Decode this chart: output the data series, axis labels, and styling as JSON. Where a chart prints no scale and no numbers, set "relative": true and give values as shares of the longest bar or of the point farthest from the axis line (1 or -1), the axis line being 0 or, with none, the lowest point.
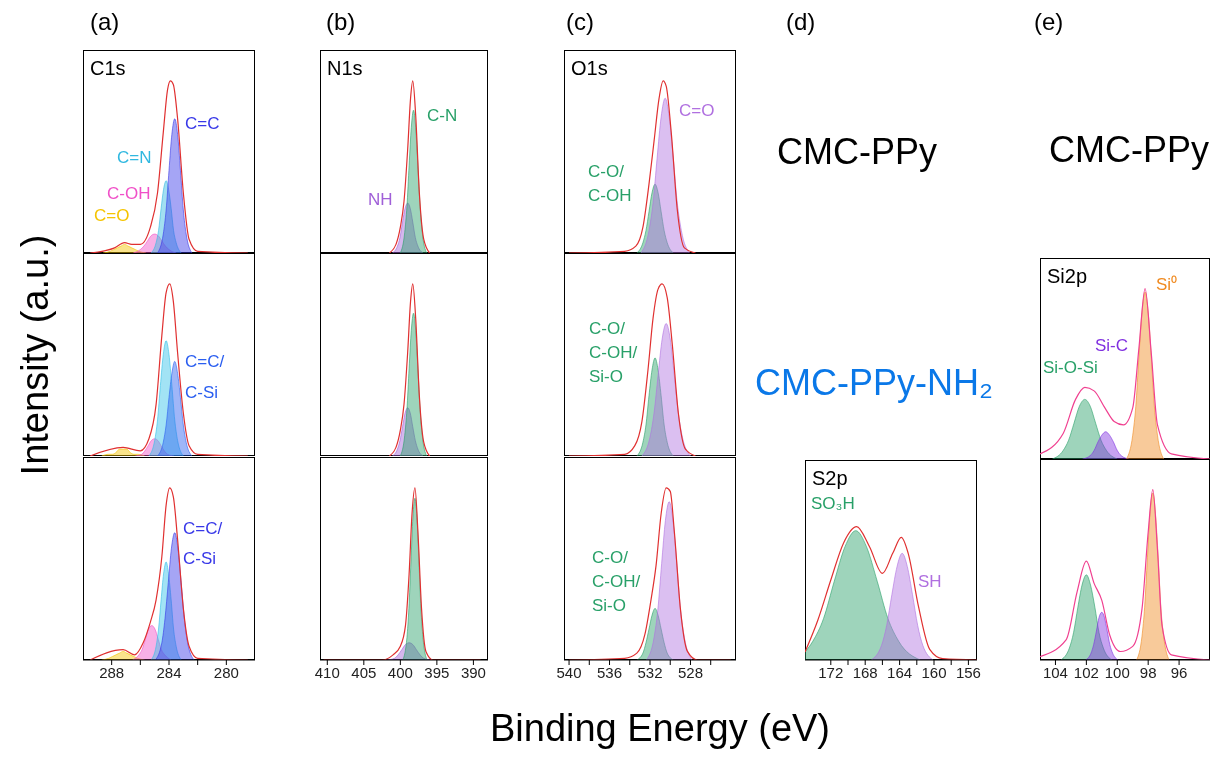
{
  "chart_data": [
    {
      "type": "area",
      "relative": true,
      "title": "(a)",
      "subtitle": "C1s",
      "xlim": [
        290,
        278
      ],
      "tick_labels": false,
      "series": [
        {
          "name": "C=O",
          "color": "#f5c400",
          "x": [
            285.6,
            286.1,
            286.35,
            286.6,
            286.85,
            287.1,
            287.35,
            287.6,
            287.85,
            288.1,
            288.6
          ],
          "values": [
            0,
            0.01,
            0.02,
            0.03,
            0.04,
            0.05,
            0.04,
            0.03,
            0.02,
            0.01,
            0
          ]
        },
        {
          "name": "C-OH",
          "color": "#f050c8",
          "x": [
            283.5,
            284,
            284.25,
            284.5,
            284.75,
            285,
            285.25,
            285.5,
            285.75,
            286,
            286.5
          ],
          "values": [
            0,
            0.02,
            0.04,
            0.07,
            0.1,
            0.11,
            0.1,
            0.07,
            0.04,
            0.02,
            0
          ]
        },
        {
          "name": "C=N",
          "color": "#30b8e0",
          "x": [
            283.15,
            283.5,
            283.68,
            283.85,
            284.03,
            284.2,
            284.38,
            284.55,
            284.73,
            284.9,
            285.25
          ],
          "values": [
            0,
            0.06,
            0.13,
            0.26,
            0.37,
            0.42,
            0.37,
            0.26,
            0.13,
            0.06,
            0
          ]
        },
        {
          "name": "C=C",
          "color": "#3838e8",
          "x": [
            282.4,
            282.8,
            283,
            283.2,
            283.4,
            283.6,
            283.8,
            284,
            284.2,
            284.4,
            284.8
          ],
          "values": [
            0,
            0.11,
            0.25,
            0.48,
            0.69,
            0.78,
            0.69,
            0.48,
            0.25,
            0.11,
            0
          ]
        },
        {
          "type": "line",
          "color": "#e03030",
          "x": [
            278.5,
            282,
            282.6,
            283,
            283.4,
            283.7,
            283.9,
            284.1,
            284.4,
            284.8,
            285.3,
            286,
            286.6,
            287.1,
            287.8,
            289.5
          ],
          "values": [
            0,
            0.01,
            0.08,
            0.35,
            0.78,
            0.98,
            1,
            0.95,
            0.7,
            0.35,
            0.15,
            0.05,
            0.05,
            0.06,
            0.03,
            0
          ]
        }
      ]
    },
    {
      "type": "area",
      "relative": true,
      "ylabel": "Intensity (a.u.)",
      "xlim": [
        290,
        278
      ],
      "tick_labels": false,
      "series": [
        {
          "color": "#f5c400",
          "x": [
            285.7,
            286.2,
            286.45,
            286.7,
            286.95,
            287.2,
            287.45,
            287.7,
            287.95,
            288.2,
            288.7
          ],
          "values": [
            0,
            0.01,
            0.01,
            0.02,
            0.04,
            0.04,
            0.04,
            0.02,
            0.01,
            0.01,
            0
          ]
        },
        {
          "color": "#f050c8",
          "x": [
            283.65,
            284.1,
            284.33,
            284.55,
            284.78,
            285,
            285.23,
            285.45,
            285.68,
            285.9,
            286.35
          ],
          "values": [
            0,
            0.01,
            0.03,
            0.06,
            0.09,
            0.1,
            0.09,
            0.06,
            0.03,
            0.01,
            0
          ]
        },
        {
          "color": "#30c0e8",
          "x": [
            283,
            283.4,
            283.6,
            283.8,
            284,
            284.2,
            284.4,
            284.6,
            284.8,
            285,
            285.4
          ],
          "values": [
            0,
            0.09,
            0.21,
            0.41,
            0.59,
            0.67,
            0.59,
            0.41,
            0.21,
            0.09,
            0
          ]
        },
        {
          "name": "C=C/C-Si",
          "color": "#2a5ef0",
          "x": [
            282.4,
            282.8,
            283,
            283.2,
            283.4,
            283.6,
            283.8,
            284,
            284.2,
            284.4,
            284.8
          ],
          "values": [
            0,
            0.08,
            0.18,
            0.34,
            0.48,
            0.55,
            0.48,
            0.34,
            0.18,
            0.08,
            0
          ]
        },
        {
          "type": "line",
          "color": "#e03030",
          "x": [
            278.5,
            282,
            282.6,
            283,
            283.4,
            283.7,
            283.95,
            284.2,
            284.5,
            284.9,
            285.4,
            286,
            287.2,
            289.5
          ],
          "values": [
            0,
            0.01,
            0.06,
            0.25,
            0.6,
            0.9,
            1,
            0.95,
            0.7,
            0.3,
            0.1,
            0.03,
            0.05,
            0
          ]
        }
      ]
    },
    {
      "type": "area",
      "relative": true,
      "xlim": [
        290,
        278
      ],
      "xticks": [
        288,
        {
          "value": 286,
          "label": null
        },
        284,
        {
          "value": 282,
          "label": null
        },
        280
      ],
      "tick_labels": "x",
      "series": [
        {
          "color": "#f5c400",
          "x": [
            285.7,
            286.2,
            286.45,
            286.7,
            286.95,
            287.2,
            287.45,
            287.7,
            287.95,
            288.2,
            288.7
          ],
          "values": [
            0,
            0.01,
            0.02,
            0.03,
            0.04,
            0.05,
            0.04,
            0.03,
            0.02,
            0.01,
            0
          ]
        },
        {
          "color": "#f050c8",
          "x": [
            283.85,
            284.3,
            284.53,
            284.75,
            284.98,
            285.2,
            285.43,
            285.65,
            285.88,
            286.1,
            286.55
          ],
          "values": [
            0,
            0.03,
            0.06,
            0.12,
            0.18,
            0.2,
            0.18,
            0.12,
            0.06,
            0.03,
            0
          ]
        },
        {
          "color": "#30c0e8",
          "x": [
            283.15,
            283.5,
            283.68,
            283.85,
            284.03,
            284.2,
            284.38,
            284.55,
            284.73,
            284.9,
            285.25
          ],
          "values": [
            0,
            0.08,
            0.18,
            0.35,
            0.5,
            0.57,
            0.5,
            0.35,
            0.18,
            0.08,
            0
          ]
        },
        {
          "name": "C=C/C-Si",
          "color": "#3838e8",
          "x": [
            282.25,
            282.7,
            282.93,
            283.15,
            283.38,
            283.6,
            283.83,
            284.05,
            284.28,
            284.5,
            284.95
          ],
          "values": [
            0,
            0.1,
            0.24,
            0.45,
            0.65,
            0.74,
            0.65,
            0.45,
            0.24,
            0.1,
            0
          ]
        },
        {
          "type": "line",
          "color": "#e03030",
          "x": [
            278.5,
            282,
            282.6,
            283,
            283.4,
            283.7,
            283.95,
            284.2,
            284.5,
            284.9,
            285.3,
            285.8,
            286.4,
            287.2,
            289.5
          ],
          "values": [
            0,
            0.01,
            0.08,
            0.3,
            0.7,
            0.95,
            1,
            0.9,
            0.6,
            0.35,
            0.22,
            0.1,
            0.03,
            0.06,
            0
          ]
        }
      ]
    },
    {
      "type": "area",
      "relative": true,
      "title": "(b)",
      "subtitle": "N1s",
      "xlim": [
        411,
        388
      ],
      "tick_labels": false,
      "series": [
        {
          "name": "NH",
          "color": "#a060d8",
          "x": [
            396.9,
            397.6,
            397.95,
            398.3,
            398.65,
            399,
            399.35,
            399.7,
            400.05,
            400.4,
            401.1
          ],
          "values": [
            0,
            0.04,
            0.09,
            0.18,
            0.26,
            0.29,
            0.26,
            0.18,
            0.09,
            0.04,
            0
          ]
        },
        {
          "name": "C-N",
          "color": "#28a068",
          "x": [
            396.4,
            397,
            397.3,
            397.6,
            397.9,
            398.2,
            398.5,
            398.8,
            399.1,
            399.4,
            400
          ],
          "values": [
            0,
            0.12,
            0.27,
            0.51,
            0.73,
            0.83,
            0.73,
            0.51,
            0.27,
            0.12,
            0
          ]
        },
        {
          "type": "line",
          "color": "#e03030",
          "x": [
            396,
            396.8,
            397.4,
            397.9,
            398.3,
            398.6,
            399,
            399.5,
            400,
            400.6,
            401.5
          ],
          "values": [
            0,
            0.08,
            0.35,
            0.8,
            1,
            0.9,
            0.6,
            0.3,
            0.15,
            0.05,
            0
          ]
        }
      ]
    },
    {
      "type": "area",
      "relative": true,
      "xlim": [
        411,
        388
      ],
      "tick_labels": false,
      "series": [
        {
          "color": "#a060d8",
          "x": [
            396.9,
            397.6,
            397.95,
            398.3,
            398.65,
            399,
            399.35,
            399.7,
            400.05,
            400.4,
            401.1
          ],
          "values": [
            0,
            0.04,
            0.09,
            0.17,
            0.25,
            0.28,
            0.25,
            0.17,
            0.09,
            0.04,
            0
          ]
        },
        {
          "color": "#28a068",
          "x": [
            396.4,
            397,
            397.3,
            397.6,
            397.9,
            398.2,
            398.5,
            398.8,
            399.1,
            399.4,
            400
          ],
          "values": [
            0,
            0.12,
            0.27,
            0.51,
            0.73,
            0.83,
            0.73,
            0.51,
            0.27,
            0.12,
            0
          ]
        },
        {
          "type": "line",
          "color": "#e03030",
          "x": [
            396,
            396.8,
            397.4,
            397.9,
            398.3,
            398.6,
            399,
            399.5,
            400,
            400.6,
            401.5
          ],
          "values": [
            0,
            0.08,
            0.35,
            0.8,
            1,
            0.9,
            0.6,
            0.3,
            0.15,
            0.05,
            0
          ]
        }
      ]
    },
    {
      "type": "area",
      "relative": true,
      "xlim": [
        411,
        388
      ],
      "xticks": [
        410,
        405,
        400,
        395,
        390
      ],
      "tick_labels": "x",
      "series": [
        {
          "color": "#a060d8",
          "x": [
            395.8,
            396.8,
            397.3,
            397.8,
            398.3,
            398.8,
            399.3,
            399.8,
            400.3,
            400.8,
            401.8
          ],
          "values": [
            0,
            0.01,
            0.03,
            0.06,
            0.09,
            0.1,
            0.09,
            0.06,
            0.03,
            0.01,
            0
          ]
        },
        {
          "color": "#28a068",
          "x": [
            396.35,
            396.9,
            397.18,
            397.45,
            397.73,
            398,
            398.28,
            398.55,
            398.83,
            399.1,
            399.65
          ],
          "values": [
            0,
            0.13,
            0.3,
            0.57,
            0.83,
            0.94,
            0.83,
            0.57,
            0.3,
            0.13,
            0
          ]
        },
        {
          "type": "line",
          "color": "#e03030",
          "x": [
            389,
            395.5,
            396.5,
            397.1,
            397.6,
            398,
            398.4,
            398.8,
            399.3,
            400,
            401,
            402.5,
            410.5
          ],
          "values": [
            0,
            0,
            0.05,
            0.3,
            0.75,
            1,
            0.85,
            0.5,
            0.2,
            0.08,
            0.03,
            0,
            0
          ]
        }
      ]
    },
    {
      "type": "area",
      "relative": true,
      "title": "(c)",
      "subtitle": "O1s",
      "xlim": [
        540.5,
        523.5
      ],
      "tick_labels": false,
      "annotations": [
        "CMC-PPy"
      ],
      "series": [
        {
          "name": "C-O/C-OH",
          "color": "#28a068",
          "x": [
            529.7,
            530.3,
            530.6,
            530.9,
            531.2,
            531.5,
            531.8,
            532.1,
            532.4,
            532.7,
            533.3
          ],
          "values": [
            0,
            0.06,
            0.13,
            0.24,
            0.35,
            0.4,
            0.35,
            0.24,
            0.13,
            0.06,
            0
          ]
        },
        {
          "name": "C=O",
          "color": "#b070e0",
          "x": [
            528.1,
            528.9,
            529.3,
            529.7,
            530.1,
            530.5,
            530.9,
            531.3,
            531.7,
            532.1,
            532.9
          ],
          "values": [
            0,
            0.13,
            0.29,
            0.55,
            0.79,
            0.9,
            0.79,
            0.55,
            0.29,
            0.13,
            0
          ]
        },
        {
          "type": "line",
          "color": "#e03030",
          "x": [
            527.5,
            528.6,
            529.3,
            529.9,
            530.4,
            530.7,
            531.1,
            531.6,
            532.1,
            532.7,
            533.4,
            534.5,
            540
          ],
          "values": [
            0,
            0.03,
            0.25,
            0.7,
            0.97,
            1,
            0.9,
            0.65,
            0.4,
            0.15,
            0.04,
            0.01,
            0
          ]
        }
      ]
    },
    {
      "type": "area",
      "relative": true,
      "xlim": [
        540.5,
        523.5
      ],
      "tick_labels": false,
      "annotations": [
        "CMC-PPy-NH₂"
      ],
      "series": [
        {
          "name": "C-O/C-OH/Si-O",
          "color": "#28a068",
          "x": [
            529.7,
            530.3,
            530.6,
            530.9,
            531.2,
            531.5,
            531.8,
            532.1,
            532.4,
            532.7,
            533.3
          ],
          "values": [
            0,
            0.08,
            0.18,
            0.35,
            0.5,
            0.57,
            0.5,
            0.35,
            0.18,
            0.08,
            0
          ]
        },
        {
          "color": "#b070e0",
          "x": [
            528,
            528.8,
            529.2,
            529.6,
            530,
            530.4,
            530.8,
            531.2,
            531.6,
            532,
            532.8
          ],
          "values": [
            0,
            0.11,
            0.25,
            0.47,
            0.68,
            0.77,
            0.68,
            0.47,
            0.25,
            0.11,
            0
          ]
        },
        {
          "type": "line",
          "color": "#e03030",
          "x": [
            527.5,
            528.5,
            529.2,
            529.8,
            530.3,
            530.8,
            531.2,
            531.7,
            532.2,
            532.8,
            533.5,
            534.5,
            540
          ],
          "values": [
            0,
            0.04,
            0.25,
            0.65,
            0.92,
            1,
            0.97,
            0.8,
            0.5,
            0.2,
            0.06,
            0.01,
            0
          ]
        }
      ]
    },
    {
      "type": "area",
      "relative": true,
      "xlabel": "Binding Energy (eV)",
      "xlim": [
        540.5,
        523.5
      ],
      "xticks": [
        540,
        {
          "value": 538,
          "label": null
        },
        536,
        {
          "value": 534,
          "label": null
        },
        532,
        {
          "value": 530,
          "label": null
        },
        528,
        {
          "value": 526,
          "label": null
        }
      ],
      "tick_labels": "x",
      "series": [
        {
          "name": "C-O/C-OH/Si-O",
          "color": "#28a068",
          "x": [
            529.7,
            530.3,
            530.6,
            530.9,
            531.2,
            531.5,
            531.8,
            532.1,
            532.4,
            532.7,
            533.3
          ],
          "values": [
            0,
            0.04,
            0.1,
            0.18,
            0.26,
            0.3,
            0.26,
            0.18,
            0.1,
            0.04,
            0
          ]
        },
        {
          "color": "#b070e0",
          "x": [
            527.85,
            528.6,
            528.98,
            529.35,
            529.73,
            530.1,
            530.48,
            530.85,
            531.23,
            531.6,
            532.35
          ],
          "values": [
            0,
            0.13,
            0.29,
            0.56,
            0.81,
            0.92,
            0.81,
            0.56,
            0.29,
            0.13,
            0
          ]
        },
        {
          "type": "line",
          "color": "#e03030",
          "x": [
            524,
            527.3,
            528.3,
            529,
            529.6,
            530,
            530.4,
            530.9,
            531.4,
            531.9,
            532.5,
            533.3,
            534.5,
            540
          ],
          "values": [
            0,
            0,
            0.05,
            0.3,
            0.75,
            0.98,
            1,
            0.85,
            0.55,
            0.35,
            0.15,
            0.04,
            0.01,
            0
          ]
        }
      ]
    },
    {
      "type": "area",
      "relative": true,
      "title": "(d)",
      "subtitle": "S2p",
      "xlim": [
        175,
        155
      ],
      "xticks": [
        172,
        {
          "value": 170,
          "label": null
        },
        168,
        {
          "value": 166,
          "label": null
        },
        164,
        {
          "value": 162,
          "label": null
        },
        160,
        {
          "value": 158,
          "label": null
        },
        156
      ],
      "tick_labels": "x",
      "series": [
        {
          "name": "SO₃H",
          "color": "#28a068",
          "x": [
            161.6,
            164.1,
            165.35,
            166.6,
            167.85,
            169.1,
            170.35,
            171.6,
            172.85,
            174.1,
            175
          ],
          "values": [
            0,
            0.14,
            0.31,
            0.59,
            0.85,
            0.97,
            0.85,
            0.59,
            0.31,
            0.14,
            0.06
          ]
        },
        {
          "name": "SH",
          "color": "#b070e0",
          "x": [
            160.1,
            161.3,
            161.9,
            162.5,
            163.1,
            163.7,
            164.3,
            164.9,
            165.5,
            166.1,
            167.3
          ],
          "values": [
            0,
            0.11,
            0.26,
            0.49,
            0.7,
            0.8,
            0.7,
            0.49,
            0.26,
            0.11,
            0
          ]
        },
        {
          "type": "line",
          "color": "#e03030",
          "x": [
            155,
            159,
            160.5,
            161.8,
            163,
            163.8,
            164.8,
            166,
            167.5,
            169,
            170.5,
            172,
            173.5,
            175
          ],
          "values": [
            0,
            0.01,
            0.08,
            0.4,
            0.8,
            0.92,
            0.8,
            0.65,
            0.85,
            1,
            0.88,
            0.6,
            0.3,
            0.06
          ]
        }
      ]
    },
    {
      "type": "area",
      "relative": true,
      "title": "(e)",
      "subtitle": "Si2p",
      "xlim": [
        105,
        94
      ],
      "tick_labels": false,
      "annotations": [
        "CMC-PPy"
      ],
      "series": [
        {
          "name": "Si-O-Si",
          "color": "#28a068",
          "x": [
            100,
            100.7,
            101.05,
            101.4,
            101.75,
            102.1,
            102.45,
            102.8,
            103.15,
            103.5,
            104.2
          ],
          "values": [
            0,
            0.05,
            0.11,
            0.21,
            0.31,
            0.35,
            0.31,
            0.21,
            0.11,
            0.05,
            0
          ]
        },
        {
          "name": "Si-C",
          "color": "#8030e0",
          "x": [
            99.25,
            99.75,
            100,
            100.25,
            100.5,
            100.75,
            101,
            101.25,
            101.5,
            101.75,
            102.25
          ],
          "values": [
            0,
            0.02,
            0.05,
            0.1,
            0.14,
            0.16,
            0.14,
            0.1,
            0.05,
            0.02,
            0
          ]
        },
        {
          "name": "Si⁰",
          "color": "#f08a20",
          "x": [
            97,
            97.4,
            97.6,
            97.8,
            98,
            98.2,
            98.4,
            98.6,
            98.8,
            99,
            99.4
          ],
          "values": [
            0,
            0.14,
            0.31,
            0.6,
            0.86,
            0.98,
            0.86,
            0.6,
            0.31,
            0.14,
            0
          ]
        },
        {
          "type": "line",
          "color": "#f04090",
          "x": [
            94,
            96.5,
            97.4,
            97.8,
            98.2,
            98.6,
            99,
            99.6,
            100.2,
            100.8,
            101.5,
            102.1,
            102.7,
            103.5,
            105
          ],
          "values": [
            0,
            0.03,
            0.2,
            0.62,
            1,
            0.65,
            0.3,
            0.2,
            0.22,
            0.3,
            0.4,
            0.42,
            0.35,
            0.15,
            0.03
          ]
        }
      ]
    },
    {
      "type": "area",
      "relative": true,
      "xlim": [
        105,
        94
      ],
      "xticks": [
        104,
        102,
        100,
        98,
        96
      ],
      "tick_labels": "x",
      "series": [
        {
          "color": "#28a068",
          "x": [
            100.35,
            100.9,
            101.18,
            101.45,
            101.73,
            102,
            102.28,
            102.55,
            102.83,
            103.1,
            103.65
          ],
          "values": [
            0,
            0.07,
            0.16,
            0.31,
            0.44,
            0.5,
            0.44,
            0.31,
            0.16,
            0.07,
            0
          ]
        },
        {
          "color": "#8030e0",
          "x": [
            99.95,
            100.3,
            100.48,
            100.65,
            100.83,
            101,
            101.18,
            101.35,
            101.53,
            101.7,
            102.05
          ],
          "values": [
            0,
            0.04,
            0.09,
            0.17,
            0.25,
            0.28,
            0.25,
            0.17,
            0.09,
            0.04,
            0
          ]
        },
        {
          "color": "#f08a20",
          "x": [
            96.65,
            97,
            97.18,
            97.35,
            97.53,
            97.7,
            97.88,
            98.05,
            98.23,
            98.4,
            98.75
          ],
          "values": [
            0,
            0.14,
            0.31,
            0.6,
            0.86,
            0.98,
            0.86,
            0.6,
            0.31,
            0.14,
            0
          ]
        },
        {
          "type": "line",
          "color": "#f04090",
          "x": [
            94,
            96.5,
            97.1,
            97.4,
            97.7,
            98,
            98.4,
            99,
            99.8,
            100.5,
            101,
            101.5,
            102,
            102.6,
            103.3,
            105
          ],
          "values": [
            0,
            0.03,
            0.2,
            0.65,
            1,
            0.75,
            0.3,
            0.08,
            0.05,
            0.15,
            0.35,
            0.45,
            0.58,
            0.4,
            0.12,
            0.02
          ]
        }
      ]
    }
  ]
}
